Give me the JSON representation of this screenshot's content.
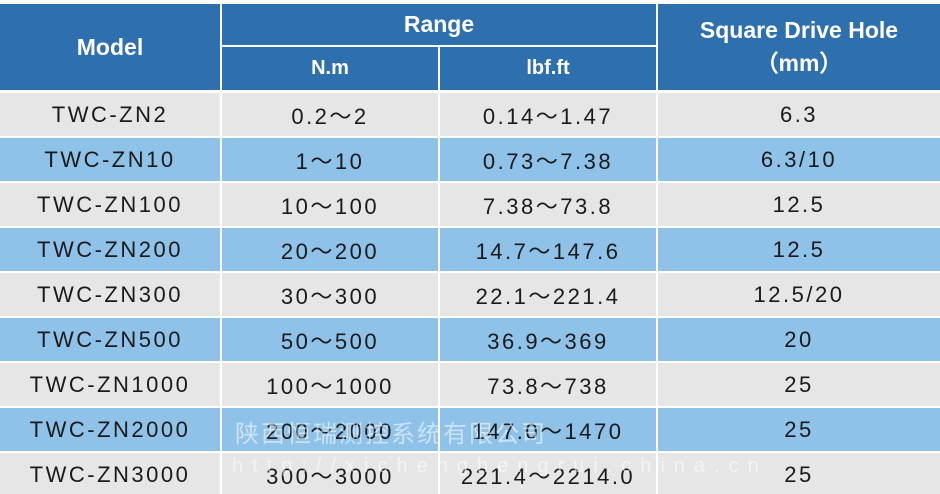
{
  "header": {
    "model": "Model",
    "range": "Range",
    "unit_nm": "N.m",
    "unit_lbfft": "lbf.ft",
    "square_drive_hole": "Square Drive Hole",
    "square_drive_unit": "（mm）"
  },
  "table": {
    "rows": [
      [
        "TWC-ZN2",
        "0.2～2",
        "0.14～1.47",
        "6.3"
      ],
      [
        "TWC-ZN10",
        "1～10",
        "0.73～7.38",
        "6.3/10"
      ],
      [
        "TWC-ZN100",
        "10～100",
        "7.38～73.8",
        "12.5"
      ],
      [
        "TWC-ZN200",
        "20～200",
        "14.7～147.6",
        "12.5"
      ],
      [
        "TWC-ZN300",
        "30～300",
        "22.1～221.4",
        "12.5/20"
      ],
      [
        "TWC-ZN500",
        "50～500",
        "36.9～369",
        "20"
      ],
      [
        "TWC-ZN1000",
        "100～1000",
        "73.8～738",
        "25"
      ],
      [
        "TWC-ZN2000",
        "200～2000",
        "147.0～1470",
        "25"
      ],
      [
        "TWC-ZN3000",
        "300～3000",
        "221.4～2214.0",
        "25"
      ]
    ]
  },
  "watermark": {
    "company": "陕西恒瑞测控系统有限公司",
    "url": "http://xichenghengrui.china.cn"
  }
}
